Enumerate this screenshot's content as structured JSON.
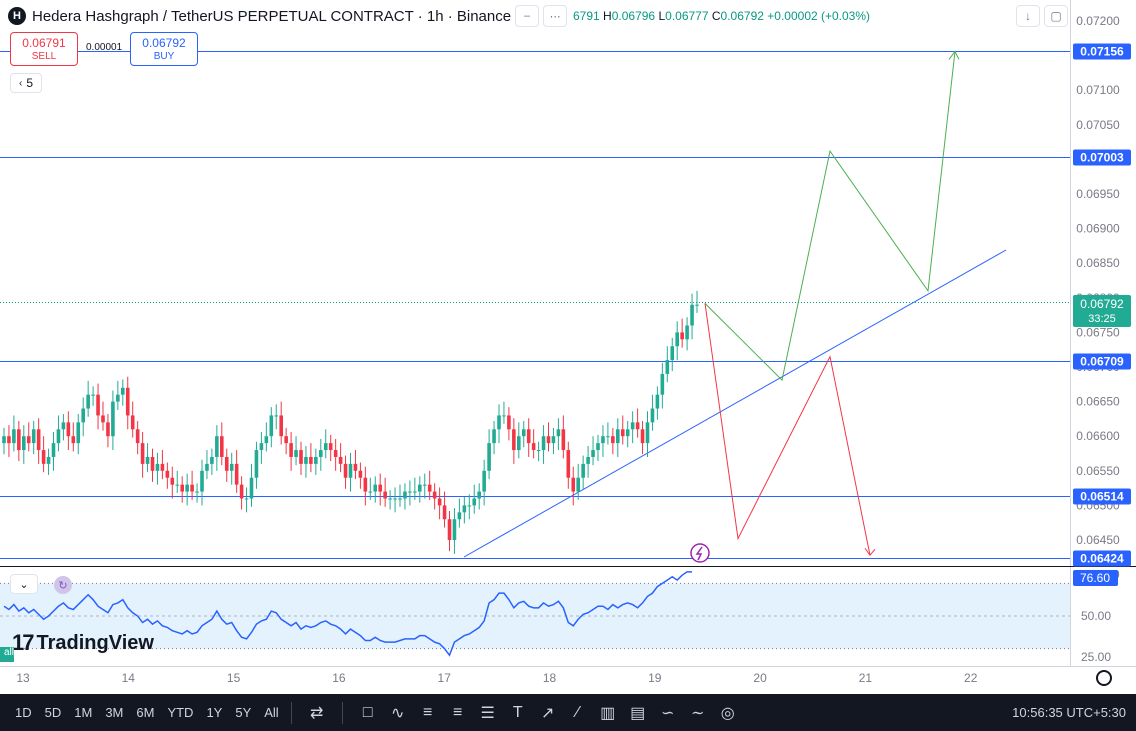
{
  "header": {
    "logo_letter": "H",
    "title": "Hedera Hashgraph / TetherUS PERPETUAL CONTRACT · 1h · Binance",
    "ohlc_open_val": "6791",
    "ohlc_high_key": "H",
    "ohlc_high_val": "0.06796",
    "ohlc_low_key": "L",
    "ohlc_low_val": "0.06777",
    "ohlc_close_key": "C",
    "ohlc_close_val": "0.06792",
    "ohlc_change": "+0.00002 (+0.03%)"
  },
  "trade": {
    "sell_price": "0.06791",
    "sell_label": "SELL",
    "spread": "0.00001",
    "buy_price": "0.06792",
    "buy_label": "BUY"
  },
  "indicator_count": "5",
  "tv_logo_text": "TradingView",
  "left_label": "all",
  "bottom_bar": {
    "timeframes": [
      "1D",
      "5D",
      "1M",
      "3M",
      "6M",
      "YTD",
      "1Y",
      "5Y",
      "All"
    ],
    "clock": "10:56:35 UTC+5:30"
  },
  "colors": {
    "up": "#22ab94",
    "down": "#f23645",
    "line": "#2962ff",
    "rsi": "#2962ff",
    "rsi_band": "#e3f2fd",
    "bottom_bar": "#131722"
  },
  "chart_data": {
    "type": "candlestick",
    "y_axis_ticks": [
      "0.07200",
      "0.07150",
      "0.07100",
      "0.07050",
      "0.07000",
      "0.06950",
      "0.06900",
      "0.06850",
      "0.06800",
      "0.06750",
      "0.06700",
      "0.06650",
      "0.06600",
      "0.06550",
      "0.06500",
      "0.06450",
      "0.06400"
    ],
    "x_axis_ticks": [
      "13",
      "14",
      "15",
      "16",
      "17",
      "18",
      "19",
      "20",
      "21",
      "22"
    ],
    "ylim": [
      0.06424,
      0.072
    ],
    "current_price": "0.06792",
    "countdown": "33:25",
    "levels": [
      "0.07156",
      "0.07003",
      "0.06709",
      "0.06514",
      "0.06424"
    ],
    "candles_close": [
      0.066,
      0.0659,
      0.0661,
      0.0658,
      0.066,
      0.0659,
      0.0661,
      0.0658,
      0.0656,
      0.0657,
      0.0659,
      0.0661,
      0.0662,
      0.066,
      0.0659,
      0.0662,
      0.0664,
      0.0666,
      0.0666,
      0.0663,
      0.0662,
      0.066,
      0.0665,
      0.0666,
      0.0667,
      0.0663,
      0.0661,
      0.0659,
      0.0656,
      0.0657,
      0.0655,
      0.0656,
      0.0655,
      0.0654,
      0.0653,
      0.0653,
      0.0652,
      0.0653,
      0.0652,
      0.0652,
      0.0655,
      0.0656,
      0.0657,
      0.066,
      0.0657,
      0.0655,
      0.0656,
      0.0653,
      0.0651,
      0.0651,
      0.0654,
      0.0658,
      0.0659,
      0.066,
      0.0663,
      0.0663,
      0.066,
      0.0659,
      0.0657,
      0.0658,
      0.0656,
      0.0657,
      0.0656,
      0.0657,
      0.0658,
      0.0659,
      0.0658,
      0.0657,
      0.0656,
      0.0654,
      0.0656,
      0.0655,
      0.0654,
      0.0652,
      0.0652,
      0.0653,
      0.0652,
      0.0651,
      0.0651,
      0.0651,
      0.0651,
      0.0652,
      0.0652,
      0.0652,
      0.0653,
      0.0653,
      0.0652,
      0.0651,
      0.065,
      0.0648,
      0.0645,
      0.0648,
      0.0649,
      0.065,
      0.065,
      0.0651,
      0.0652,
      0.0655,
      0.0659,
      0.0661,
      0.0663,
      0.0663,
      0.0661,
      0.0658,
      0.066,
      0.0661,
      0.0659,
      0.0658,
      0.0658,
      0.066,
      0.0659,
      0.066,
      0.0661,
      0.0658,
      0.0654,
      0.0652,
      0.0654,
      0.0656,
      0.0657,
      0.0658,
      0.0659,
      0.066,
      0.066,
      0.0659,
      0.0661,
      0.066,
      0.0661,
      0.0662,
      0.0661,
      0.0659,
      0.0662,
      0.0664,
      0.0666,
      0.0669,
      0.0671,
      0.0673,
      0.0675,
      0.0674,
      0.0676,
      0.0679,
      0.0679
    ],
    "projection_green": [
      "0.06792",
      "0.06681",
      "0.07012",
      "0.06810",
      "0.07156"
    ],
    "projection_red": [
      "0.06792",
      "0.06452",
      "0.06715",
      "0.06428"
    ],
    "rsi": {
      "value": "76.60",
      "ticks": [
        "50.00",
        "25.00"
      ],
      "ylim": [
        20,
        80
      ],
      "upper": 70,
      "lower": 30,
      "values": [
        56,
        54,
        57,
        53,
        55,
        52,
        54,
        51,
        48,
        50,
        53,
        56,
        58,
        55,
        54,
        57,
        60,
        63,
        60,
        56,
        54,
        52,
        57,
        58,
        60,
        55,
        52,
        50,
        46,
        48,
        45,
        47,
        44,
        43,
        41,
        40,
        39,
        41,
        39,
        40,
        44,
        46,
        48,
        53,
        48,
        45,
        46,
        41,
        37,
        36,
        40,
        45,
        47,
        48,
        53,
        52,
        48,
        46,
        44,
        46,
        42,
        44,
        43,
        44,
        46,
        47,
        45,
        44,
        42,
        39,
        42,
        40,
        38,
        35,
        35,
        37,
        35,
        34,
        34,
        34,
        35,
        36,
        36,
        36,
        38,
        38,
        36,
        34,
        33,
        30,
        26,
        34,
        36,
        38,
        39,
        41,
        43,
        47,
        58,
        60,
        64,
        64,
        60,
        55,
        58,
        59,
        56,
        55,
        55,
        58,
        56,
        57,
        59,
        55,
        46,
        44,
        48,
        51,
        52,
        54,
        56,
        56,
        54,
        57,
        55,
        57,
        58,
        57,
        55,
        58,
        62,
        64,
        68,
        70,
        72,
        74,
        72,
        75,
        77,
        77
      ]
    }
  }
}
